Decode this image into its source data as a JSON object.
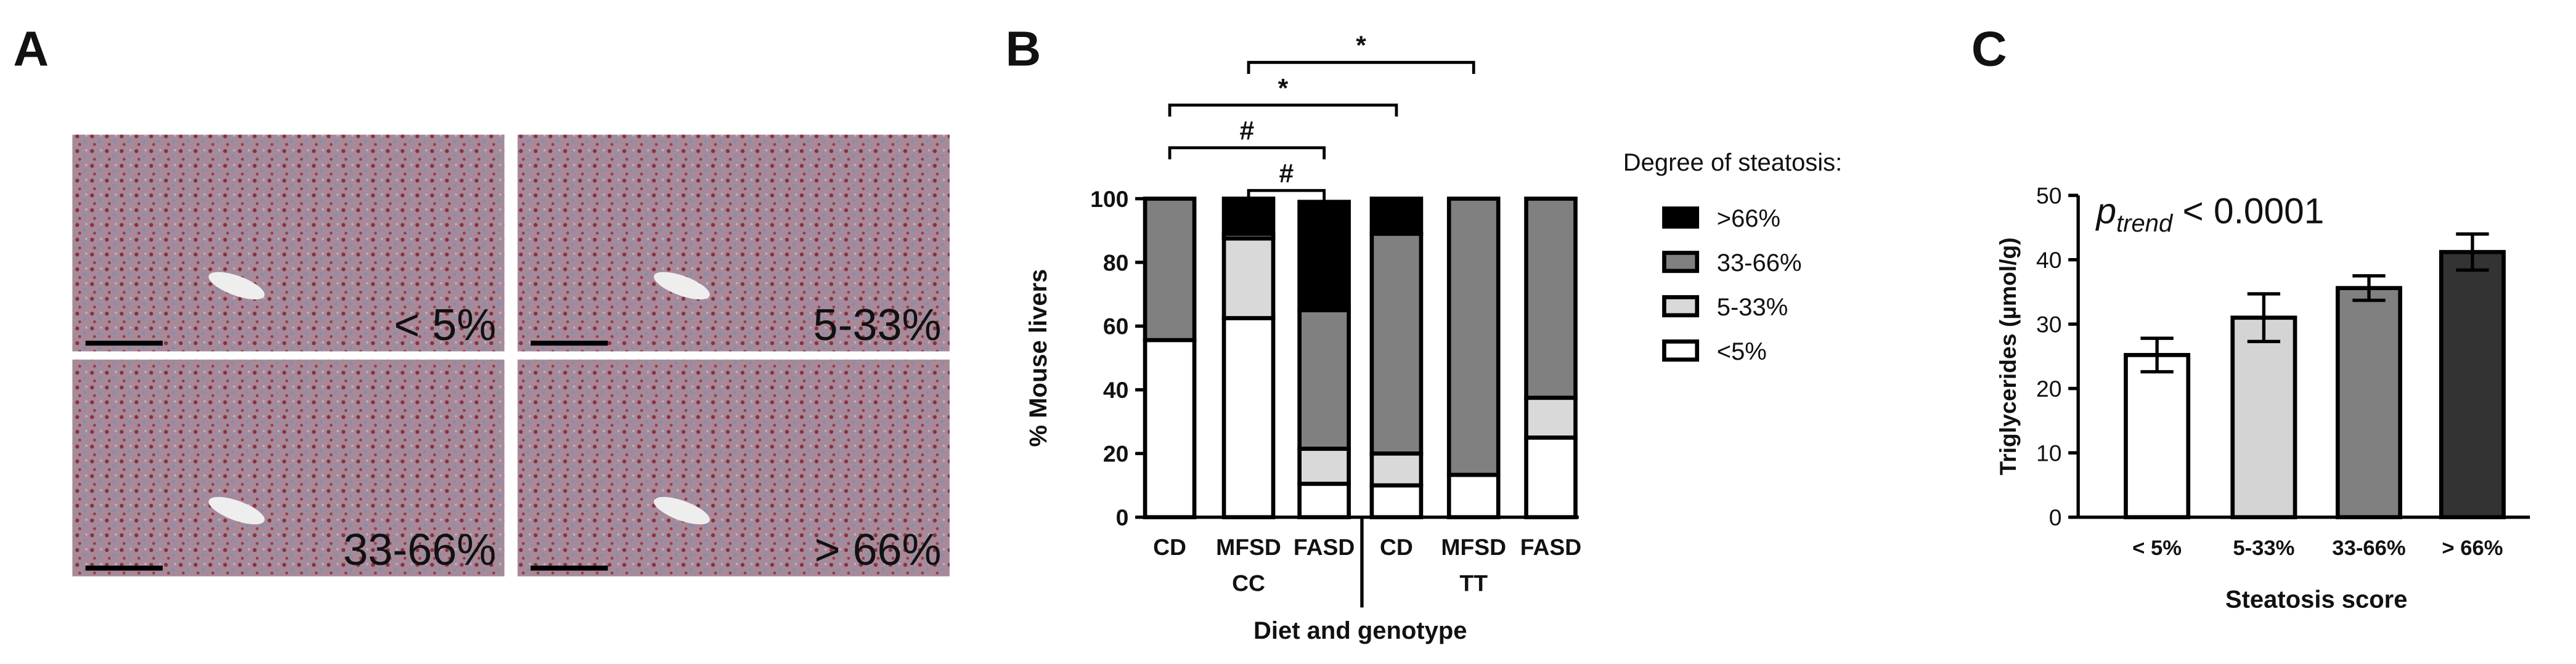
{
  "panel_a": {
    "panel_label": "A",
    "images": [
      {
        "label": "< 5%"
      },
      {
        "label": "5-33%"
      },
      {
        "label": "33-66%"
      },
      {
        "label": "> 66%"
      }
    ]
  },
  "chart_data": [
    {
      "type": "stacked_bar",
      "panel_label": "B",
      "categories": [
        "CD",
        "MFSD",
        "FASD",
        "CD",
        "MFSD",
        "FASD"
      ],
      "groups": [
        "CC",
        "TT"
      ],
      "xlabel": "Diet and genotype",
      "ylabel": "% Mouse livers",
      "legend_title": "Degree of steatosis:",
      "series": [
        {
          "name": "<5%",
          "color": "#ffffff",
          "values": [
            55.6,
            62.5,
            10.5,
            10,
            13.3,
            25
          ]
        },
        {
          "name": "5-33%",
          "color": "#d9d9d9",
          "values": [
            0,
            25,
            11,
            10,
            0,
            12.5
          ]
        },
        {
          "name": "33-66%",
          "color": "#808080",
          "values": [
            44.4,
            1.5,
            43.5,
            69,
            86.7,
            62.5
          ]
        },
        {
          "name": ">66%",
          "color": "#000000",
          "values": [
            0,
            11,
            34,
            11,
            0,
            0
          ]
        }
      ],
      "ylim": [
        0,
        100
      ],
      "yticks": [
        0,
        20,
        40,
        60,
        80,
        100
      ],
      "comparisons": [
        {
          "label": "*",
          "from": 1,
          "to": 4
        },
        {
          "label": "*",
          "from": 0,
          "to": 3
        },
        {
          "label": "#",
          "from": 0,
          "to": 2
        },
        {
          "label": "#",
          "from": 1,
          "to": 2
        }
      ]
    },
    {
      "type": "bar",
      "panel_label": "C",
      "categories": [
        "< 5%",
        "5-33%",
        "33-66%",
        "> 66%"
      ],
      "values": [
        25.2,
        31,
        35.6,
        41.2
      ],
      "errors": [
        2.6,
        3.7,
        1.9,
        2.8
      ],
      "colors": [
        "#ffffff",
        "#d4d4d4",
        "#808080",
        "#333333"
      ],
      "xlabel": "Steatosis score",
      "ylabel": "Triglycerides (µmol/g)",
      "annotation": {
        "text": "p",
        "subscript": "trend",
        "rest": " < 0.0001"
      },
      "ylim": [
        0,
        50
      ],
      "yticks": [
        0,
        10,
        20,
        30,
        40,
        50
      ]
    }
  ]
}
